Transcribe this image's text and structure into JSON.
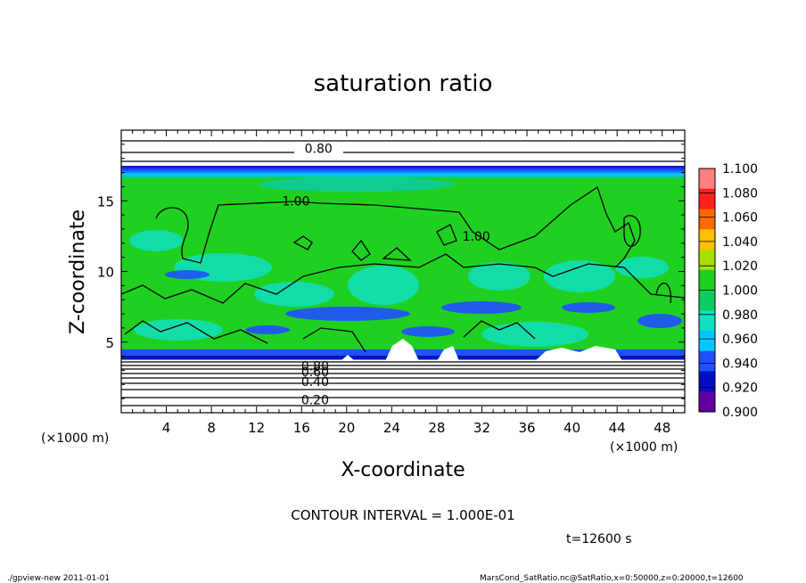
{
  "chart_data": {
    "type": "heatmap",
    "title": "saturation ratio",
    "xlabel": "X-coordinate",
    "ylabel": "Z-coordinate",
    "x_unit": "(×1000 m)",
    "y_unit": "(×1000 m)",
    "xlim": [
      0,
      50
    ],
    "ylim": [
      0,
      20
    ],
    "x_ticks": [
      4,
      8,
      12,
      16,
      20,
      24,
      28,
      32,
      36,
      40,
      44,
      48
    ],
    "y_ticks": [
      5,
      10,
      15
    ],
    "colorbar": {
      "levels": [
        1.1,
        1.08,
        1.06,
        1.04,
        1.02,
        1.0,
        0.98,
        0.96,
        0.94,
        0.92,
        0.9
      ],
      "labels": [
        "1.100",
        "1.080",
        "1.060",
        "1.040",
        "1.020",
        "1.000",
        "0.980",
        "0.960",
        "0.940",
        "0.920",
        "0.900"
      ],
      "colors": [
        "#ff8080",
        "#ff2020",
        "#ff6a00",
        "#ffc000",
        "#a8e000",
        "#20d020",
        "#10cc60",
        "#10e0c0",
        "#00c8ff",
        "#2050ff",
        "#0010c0",
        "#6000a0"
      ]
    },
    "contour_labels": [
      {
        "text": "0.80",
        "x": 17.5,
        "y": 18.7
      },
      {
        "text": "1.00",
        "x": 15.5,
        "y": 15.0
      },
      {
        "text": "1.00",
        "x": 31.5,
        "y": 12.5
      },
      {
        "text": "0.80",
        "x": 17.2,
        "y": 3.3
      },
      {
        "text": "0.60",
        "x": 17.2,
        "y": 2.9
      },
      {
        "text": "0.40",
        "x": 17.2,
        "y": 2.2
      },
      {
        "text": "0.20",
        "x": 17.2,
        "y": 0.9
      }
    ],
    "contour_interval_text": "CONTOUR INTERVAL = 1.000E-01",
    "time_text": "t=12600 s"
  },
  "footer": {
    "left": "./gpview-new  2011-01-01",
    "right": "MarsCond_SatRatio.nc@SatRatio,x=0:50000,z=0:20000,t=12600"
  }
}
